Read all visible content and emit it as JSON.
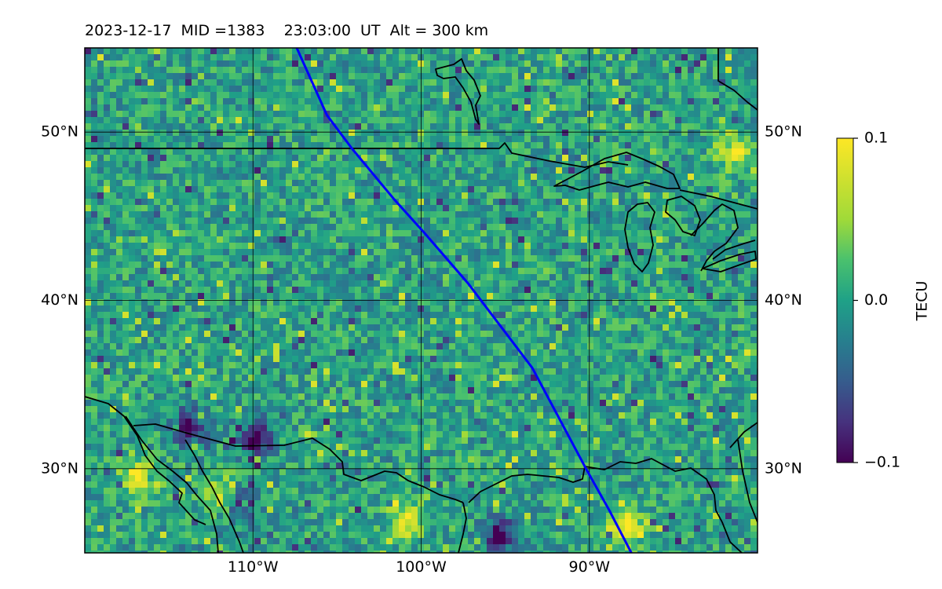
{
  "title": "2023-12-17  MID =1383    23:03:00  UT  Alt = 300 km",
  "chart_data": {
    "type": "heatmap",
    "title": "2023-12-17  MID =1383    23:03:00  UT  Alt = 300 km",
    "projection": "plate-carree",
    "lon_range": [
      -120,
      -80
    ],
    "lat_range": [
      25,
      55
    ],
    "lon_ticks": [
      -110,
      -100,
      -90
    ],
    "lat_ticks": [
      30,
      40,
      50
    ],
    "lon_tick_labels": [
      "110°W",
      "100°W",
      "90°W"
    ],
    "lat_tick_labels": [
      "30°N",
      "40°N",
      "50°N"
    ],
    "grid": true,
    "colormap": "viridis",
    "clim": [
      -0.1,
      0.1
    ],
    "colorbar": {
      "label": "TECU",
      "ticks": [
        0.1,
        0.0,
        -0.1
      ],
      "tick_labels": [
        "0.1",
        "0.0",
        "−0.1"
      ],
      "position": "right"
    },
    "track": {
      "color": "#0000ff",
      "points": [
        [
          -107.4,
          55
        ],
        [
          -105.6,
          51
        ],
        [
          -104.1,
          49
        ],
        [
          -101.6,
          46
        ],
        [
          -99.8,
          44
        ],
        [
          -97.2,
          41
        ],
        [
          -95.3,
          38.5
        ],
        [
          -93.4,
          36
        ],
        [
          -91.8,
          33
        ],
        [
          -90.2,
          30
        ],
        [
          -88.8,
          27.5
        ],
        [
          -87.5,
          25
        ]
      ]
    },
    "features": {
      "strong_positive_areas": [
        {
          "lon": -117,
          "lat": 29.7,
          "value": 0.1
        },
        {
          "lon": -112,
          "lat": 28.5,
          "value": 0.08
        },
        {
          "lon": -81.5,
          "lat": 49.0,
          "value": 0.1
        },
        {
          "lon": -88.0,
          "lat": 26.7,
          "value": 0.1
        },
        {
          "lon": -101.0,
          "lat": 27.0,
          "value": 0.09
        }
      ],
      "strong_negative_areas": [
        {
          "lon": -95.5,
          "lat": 26.2,
          "value": -0.1
        },
        {
          "lon": -114,
          "lat": 32.6,
          "value": -0.1
        },
        {
          "lon": -110,
          "lat": 32.0,
          "value": -0.1
        },
        {
          "lon": -111,
          "lat": 28.0,
          "value": -0.08
        }
      ]
    }
  }
}
